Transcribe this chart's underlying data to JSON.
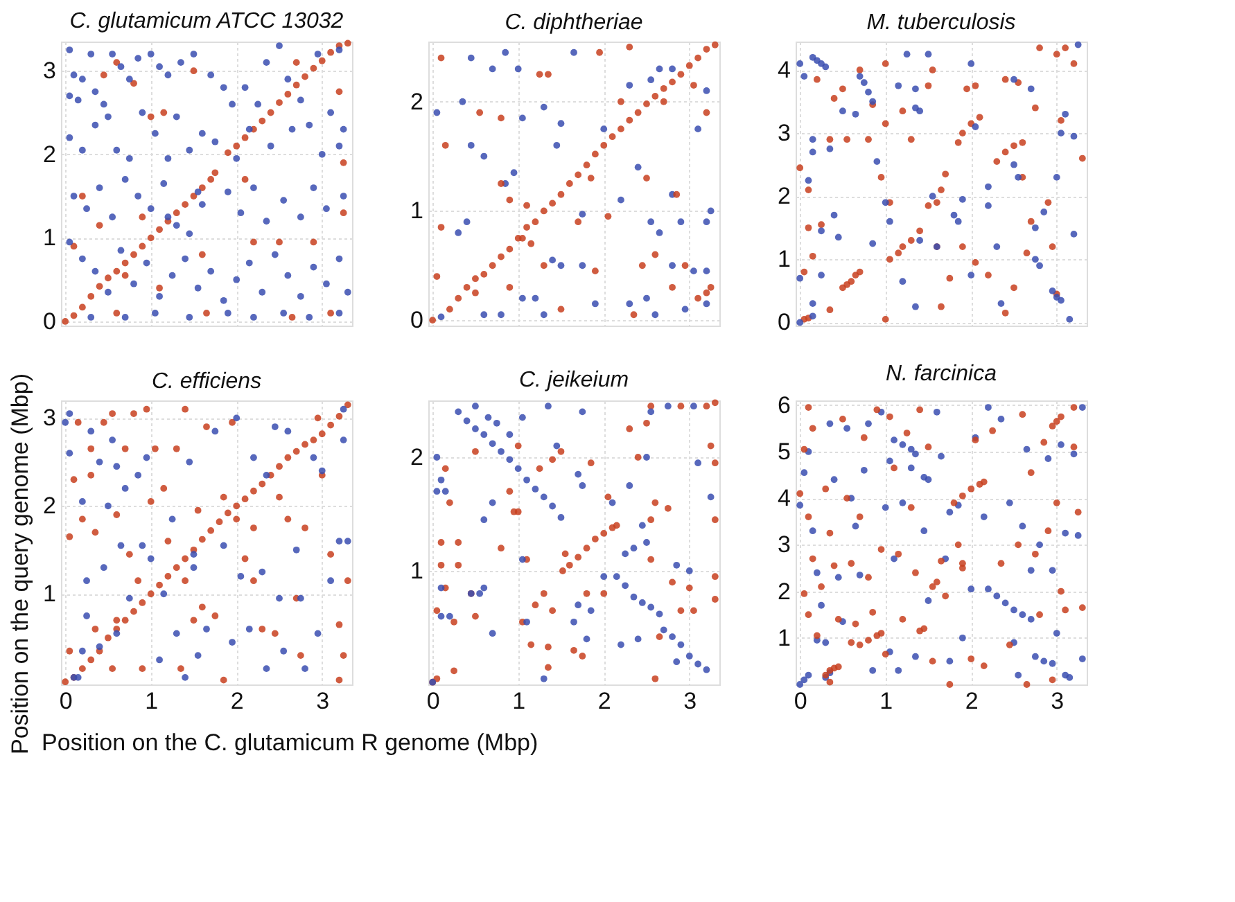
{
  "chart_data": [
    {
      "type": "scatter",
      "title": "C. glutamicum ATCC 13032",
      "xlabel": "Position on the C. glutamicum R genome (Mbp)",
      "ylabel": "Position on the query genome (Mbp)",
      "xlim": [
        -0.05,
        3.35
      ],
      "ylim": [
        -0.05,
        3.35
      ],
      "xticks": [
        0,
        1,
        2,
        3
      ],
      "yticks": [
        0,
        1,
        2,
        3
      ],
      "grid": true,
      "tick_labels": "y",
      "marker": "circle",
      "series": [
        {
          "color": "#c8401e",
          "x": [
            0,
            0.1,
            0.2,
            0.3,
            0.4,
            0.5,
            0.6,
            0.7,
            0.8,
            0.9,
            1.0,
            1.1,
            1.2,
            1.3,
            1.4,
            1.5,
            1.6,
            1.7,
            1.75,
            1.9,
            2.0,
            2.1,
            2.2,
            2.3,
            2.4,
            2.5,
            2.6,
            2.7,
            2.8,
            2.9,
            3.0,
            3.1,
            3.2,
            3.3,
            0.45,
            0.6,
            0.8,
            1.0,
            1.15,
            0.2,
            0.4,
            0.1,
            0.9,
            1.6,
            1.1,
            0.6,
            1.65,
            2.2,
            2.5,
            2.9,
            3.25,
            3.25,
            2.65,
            3.1,
            2.7,
            3.2,
            1.5,
            0.7,
            2.1
          ],
          "values": [
            0,
            0.07,
            0.17,
            0.3,
            0.42,
            0.52,
            0.6,
            0.7,
            0.8,
            0.9,
            1.0,
            1.1,
            1.2,
            1.3,
            1.4,
            1.5,
            1.6,
            1.7,
            1.78,
            2.02,
            2.1,
            2.2,
            2.3,
            2.4,
            2.5,
            2.62,
            2.72,
            2.83,
            2.93,
            3.03,
            3.12,
            3.22,
            3.3,
            3.33,
            2.95,
            3.1,
            2.85,
            2.45,
            2.5,
            1.5,
            1.15,
            0.9,
            1.25,
            0.8,
            0.4,
            0.1,
            0.1,
            0.95,
            0.95,
            0.95,
            1.3,
            1.9,
            0.05,
            0.1,
            3.1,
            2.75,
            3.0,
            0.55,
            1.7
          ]
        },
        {
          "color": "#3a4db0",
          "x": [
            0.05,
            0.1,
            0.05,
            0.15,
            0.2,
            0.3,
            0.35,
            0.45,
            0.55,
            0.65,
            0.75,
            0.85,
            1.0,
            1.1,
            1.2,
            1.35,
            1.5,
            1.7,
            1.85,
            1.95,
            2.1,
            2.25,
            2.35,
            2.5,
            2.6,
            2.75,
            2.95,
            3.1,
            3.25,
            0.05,
            0.2,
            0.35,
            0.5,
            0.6,
            0.75,
            0.9,
            1.05,
            1.2,
            1.3,
            1.45,
            1.6,
            1.75,
            2.0,
            2.15,
            2.4,
            2.65,
            2.85,
            3.0,
            3.2,
            0.1,
            0.25,
            0.4,
            0.55,
            0.7,
            0.85,
            1.0,
            1.15,
            1.3,
            1.45,
            1.6,
            1.9,
            2.05,
            2.2,
            2.35,
            2.55,
            2.75,
            2.9,
            3.05,
            3.25,
            0.05,
            0.2,
            0.35,
            0.5,
            0.65,
            0.8,
            0.95,
            1.1,
            1.25,
            1.4,
            1.55,
            1.7,
            1.85,
            2.0,
            2.15,
            2.3,
            2.45,
            2.6,
            2.75,
            2.9,
            3.05,
            3.2,
            3.3,
            0.3,
            0.7,
            1.05,
            1.45,
            1.9,
            2.2,
            2.55,
            2.85,
            3.2,
            1.2,
            1.55,
            3.2
          ],
          "values": [
            3.25,
            2.95,
            2.7,
            2.65,
            2.9,
            3.2,
            2.75,
            2.6,
            3.2,
            3.05,
            2.9,
            3.15,
            3.2,
            3.05,
            2.95,
            3.1,
            3.2,
            2.95,
            2.8,
            2.6,
            2.8,
            2.6,
            3.1,
            3.3,
            2.9,
            2.65,
            3.2,
            2.5,
            2.3,
            2.2,
            2.05,
            2.35,
            2.45,
            2.05,
            1.95,
            2.5,
            2.25,
            1.95,
            2.45,
            2.05,
            2.25,
            2.15,
            1.95,
            2.3,
            2.1,
            2.3,
            2.35,
            2.0,
            2.1,
            1.5,
            1.35,
            1.6,
            1.25,
            1.7,
            1.5,
            1.35,
            1.65,
            1.15,
            1.05,
            1.4,
            1.55,
            1.3,
            1.6,
            1.2,
            1.45,
            1.25,
            1.6,
            1.35,
            1.5,
            0.95,
            0.75,
            0.6,
            0.35,
            0.85,
            0.45,
            0.7,
            0.3,
            0.55,
            0.75,
            0.4,
            0.6,
            0.25,
            0.5,
            0.7,
            0.35,
            0.8,
            0.55,
            0.3,
            0.65,
            0.45,
            0.75,
            0.35,
            0.05,
            0.05,
            0.1,
            0.05,
            0.1,
            0.05,
            0.1,
            0.05,
            0.1,
            1.25,
            1.55,
            3.25
          ]
        }
      ]
    },
    {
      "type": "scatter",
      "title": "C. diphtheriae",
      "xlim": [
        -0.05,
        3.35
      ],
      "ylim": [
        -0.05,
        2.55
      ],
      "xticks": [
        0,
        1,
        2,
        3
      ],
      "yticks": [
        0,
        1,
        2
      ],
      "grid": true,
      "tick_labels": "y",
      "marker": "circle",
      "series": [
        {
          "color": "#3a4db0",
          "x": [
            0.05,
            0.35,
            0.45,
            0.45,
            0.6,
            0.7,
            0.85,
            1.0,
            1.05,
            0.95,
            0.85,
            1.3,
            1.5,
            1.45,
            1.65,
            2.0,
            2.3,
            2.55,
            2.65,
            2.8,
            3.1,
            3.2,
            2.8,
            3.25,
            3.2,
            2.55,
            2.65,
            2.9,
            2.8,
            3.05,
            3.2,
            2.5,
            2.6,
            2.95,
            3.2,
            2.3,
            1.9,
            1.75,
            1.5,
            1.4,
            1.05,
            1.2,
            1.3,
            0.6,
            0.8,
            0.1,
            0.3,
            0.4,
            1.75,
            2.2,
            2.4
          ],
          "values": [
            1.9,
            2.0,
            2.4,
            1.6,
            1.5,
            2.3,
            2.45,
            2.3,
            1.85,
            1.35,
            1.25,
            1.95,
            1.8,
            1.6,
            2.45,
            1.75,
            2.15,
            2.2,
            2.3,
            2.3,
            1.75,
            2.1,
            1.15,
            1.0,
            0.9,
            0.9,
            0.8,
            0.9,
            0.5,
            0.45,
            0.45,
            0.2,
            0.05,
            0.1,
            0.15,
            0.15,
            0.15,
            0.5,
            0.5,
            0.55,
            0.2,
            0.2,
            0.05,
            0.05,
            0.05,
            0.03,
            0.8,
            0.9,
            0.97,
            1.1,
            1.4
          ]
        },
        {
          "color": "#c8401e",
          "x": [
            0,
            0.2,
            0.3,
            0.4,
            0.5,
            0.6,
            0.7,
            0.8,
            0.9,
            1.0,
            1.1,
            1.2,
            1.3,
            1.4,
            1.5,
            1.6,
            1.7,
            1.8,
            1.9,
            2.0,
            2.1,
            2.2,
            2.3,
            2.4,
            2.5,
            2.6,
            2.7,
            2.8,
            2.9,
            3.0,
            3.1,
            3.2,
            3.3,
            0.1,
            0.15,
            0.1,
            0.05,
            0.55,
            0.8,
            0.8,
            0.9,
            1.1,
            1.25,
            1.35,
            1.15,
            1.5,
            1.7,
            1.85,
            1.95,
            2.05,
            2.2,
            2.3,
            2.5,
            2.6,
            2.7,
            2.85,
            2.95,
            3.05,
            3.2,
            3.25,
            3.2,
            2.45,
            2.35,
            1.9,
            1.3,
            0.9,
            0.5,
            1.05,
            2.8,
            3.1
          ],
          "values": [
            0,
            0.1,
            0.2,
            0.3,
            0.38,
            0.42,
            0.5,
            0.58,
            0.65,
            0.75,
            0.85,
            0.9,
            1.0,
            1.07,
            1.15,
            1.25,
            1.33,
            1.42,
            1.52,
            1.6,
            1.68,
            1.75,
            1.83,
            1.9,
            1.98,
            2.05,
            2.12,
            2.18,
            2.25,
            2.33,
            2.4,
            2.48,
            2.52,
            2.4,
            1.6,
            0.85,
            0.4,
            1.9,
            1.85,
            1.25,
            1.1,
            1.05,
            2.25,
            2.25,
            0.7,
            0.1,
            0.9,
            1.3,
            2.45,
            0.95,
            2.0,
            2.5,
            1.3,
            0.6,
            2.0,
            1.15,
            0.5,
            2.15,
            1.9,
            0.3,
            0.25,
            0.5,
            0.05,
            0.45,
            0.5,
            0.3,
            0.25,
            0.75,
            0.3,
            0.2
          ]
        }
      ]
    },
    {
      "type": "scatter",
      "title": "M. tuberculosis",
      "xlim": [
        -0.05,
        3.35
      ],
      "ylim": [
        -0.05,
        4.45
      ],
      "xticks": [
        0,
        1,
        2,
        3
      ],
      "yticks": [
        0,
        1,
        2,
        3,
        4
      ],
      "grid": true,
      "tick_labels": "y",
      "marker": "circle",
      "series": [
        {
          "color": "#c8401e",
          "x": [
            0.05,
            0.1,
            0.5,
            0.55,
            0.6,
            0.65,
            0.7,
            1.05,
            1.15,
            1.2,
            1.3,
            1.4,
            1.5,
            1.6,
            1.65,
            1.7,
            1.85,
            1.9,
            2.0,
            2.1,
            2.3,
            2.4,
            2.5,
            2.6,
            3.0,
            3.1,
            0.0,
            0.1,
            0.1,
            0.15,
            0.05,
            0.25,
            0.35,
            0.4,
            0.5,
            0.2,
            0.7,
            0.8,
            0.55,
            0.85,
            1.0,
            1.0,
            0.95,
            1.05,
            1.3,
            1.2,
            1.5,
            1.55,
            1.6,
            1.75,
            1.9,
            2.05,
            2.2,
            1.95,
            2.05,
            2.4,
            2.55,
            2.6,
            2.65,
            2.7,
            2.9,
            2.95,
            2.5,
            2.4,
            0.35,
            1.0,
            1.65,
            2.75,
            3.2,
            3.05,
            3.3,
            2.8,
            3.0
          ],
          "values": [
            0.05,
            0.07,
            0.55,
            0.6,
            0.65,
            0.75,
            0.8,
            1.0,
            1.1,
            1.2,
            1.3,
            1.45,
            1.85,
            1.9,
            2.1,
            2.35,
            2.85,
            3.0,
            3.15,
            3.25,
            2.55,
            2.7,
            2.8,
            2.85,
            4.25,
            4.35,
            2.45,
            2.1,
            1.5,
            1.05,
            0.8,
            1.55,
            2.9,
            3.55,
            3.7,
            3.85,
            4.0,
            2.9,
            2.9,
            3.45,
            4.1,
            3.15,
            2.3,
            1.9,
            2.9,
            3.35,
            3.75,
            4.0,
            1.2,
            0.7,
            1.2,
            0.95,
            0.75,
            3.7,
            3.75,
            3.85,
            3.8,
            2.3,
            1.1,
            1.6,
            1.9,
            1.2,
            0.55,
            0.15,
            0.2,
            0.05,
            0.25,
            3.4,
            4.1,
            3.2,
            2.6,
            4.35,
            0.45
          ]
        },
        {
          "color": "#3a4db0",
          "x": [
            0.15,
            0.2,
            0.25,
            0.3,
            0.7,
            0.75,
            0.8,
            0.85,
            1.35,
            1.4,
            1.35,
            1.8,
            1.85,
            2.5,
            2.55,
            2.75,
            2.8,
            2.95,
            3.0,
            3.05,
            0.0,
            0.05,
            0.15,
            0.15,
            0.1,
            0.0,
            0.15,
            0.15,
            0.0,
            0.25,
            0.25,
            0.4,
            0.45,
            0.5,
            0.65,
            0.35,
            0.85,
            0.9,
            1.0,
            1.05,
            1.15,
            1.2,
            1.25,
            1.35,
            1.4,
            1.5,
            1.55,
            1.6,
            1.9,
            2.0,
            2.0,
            2.05,
            2.2,
            2.3,
            2.35,
            2.5,
            2.7,
            2.75,
            2.85,
            3.0,
            3.05,
            3.1,
            3.2,
            3.2,
            3.15,
            3.25,
            2.2
          ],
          "values": [
            4.2,
            4.15,
            4.1,
            4.05,
            3.9,
            3.8,
            3.65,
            3.5,
            3.4,
            3.35,
            3.7,
            1.7,
            1.6,
            2.5,
            2.3,
            1.0,
            0.9,
            0.5,
            0.4,
            0.35,
            4.1,
            3.9,
            2.9,
            2.7,
            2.25,
            0.7,
            0.3,
            0.1,
            0.0,
            1.45,
            0.75,
            1.7,
            1.35,
            3.35,
            3.3,
            2.75,
            1.25,
            2.55,
            1.9,
            1.6,
            3.75,
            0.65,
            4.25,
            0.25,
            1.3,
            4.25,
            2.0,
            1.2,
            1.95,
            4.1,
            0.75,
            3.1,
            1.85,
            1.2,
            0.3,
            3.85,
            3.7,
            1.5,
            1.75,
            2.3,
            3.0,
            3.3,
            2.95,
            1.4,
            0.05,
            4.4,
            2.15
          ]
        }
      ]
    },
    {
      "type": "scatter",
      "title": "C. efficiens",
      "xlim": [
        -0.05,
        3.35
      ],
      "ylim": [
        -0.03,
        3.2
      ],
      "xticks": [
        0,
        1,
        2,
        3
      ],
      "yticks": [
        1,
        2,
        3
      ],
      "grid": true,
      "marker": "circle",
      "series": [
        {
          "color": "#c8401e",
          "x": [
            0,
            0.1,
            0.2,
            0.3,
            0.4,
            0.5,
            0.6,
            0.7,
            0.8,
            0.9,
            1.0,
            1.1,
            1.2,
            1.3,
            1.4,
            1.5,
            1.6,
            1.7,
            1.8,
            1.9,
            2.0,
            2.1,
            2.2,
            2.3,
            2.4,
            2.5,
            2.6,
            2.7,
            2.8,
            2.9,
            3.0,
            3.1,
            3.2,
            3.3,
            0.05,
            0.1,
            0.15,
            0.05,
            0.2,
            0.3,
            0.3,
            0.35,
            0.45,
            0.55,
            0.6,
            0.7,
            0.75,
            0.85,
            0.8,
            0.95,
            1.0,
            1.05,
            1.15,
            1.2,
            1.3,
            1.4,
            1.4,
            1.55,
            1.65,
            1.6,
            1.75,
            1.85,
            1.95,
            2.0,
            2.1,
            2.2,
            2.3,
            2.45,
            2.5,
            2.6,
            2.7,
            2.8,
            2.95,
            3.0,
            3.1,
            3.2,
            3.25,
            3.3,
            0.35,
            0.6,
            0.9,
            1.35,
            1.85,
            2.75,
            3.2,
            0.55,
            1.5,
            2.2
          ],
          "values": [
            0,
            0.05,
            0.15,
            0.25,
            0.35,
            0.5,
            0.6,
            0.7,
            0.8,
            0.9,
            1.0,
            1.1,
            1.2,
            1.3,
            1.4,
            1.5,
            1.62,
            1.72,
            1.82,
            1.92,
            2.0,
            2.08,
            2.17,
            2.25,
            2.35,
            2.45,
            2.55,
            2.62,
            2.7,
            2.75,
            2.82,
            2.92,
            3.02,
            3.15,
            0.35,
            2.3,
            2.95,
            1.65,
            1.85,
            2.35,
            2.65,
            1.7,
            2.95,
            3.05,
            1.9,
            2.65,
            1.45,
            1.15,
            3.05,
            3.1,
            2.05,
            2.65,
            2.2,
            1.6,
            2.65,
            3.1,
            1.15,
            1.95,
            2.9,
            0.85,
            0.75,
            2.1,
            2.95,
            1.85,
            1.4,
            1.15,
            0.6,
            0.55,
            2.1,
            1.85,
            0.95,
            1.75,
            3.0,
            2.35,
            1.45,
            0.65,
            0.3,
            1.15,
            0.6,
            0.7,
            0.15,
            0.15,
            0.02,
            0.3,
            0.02,
            0.15,
            0.7,
            1.75
          ]
        },
        {
          "color": "#3a4db0",
          "x": [
            0.0,
            0.05,
            0.05,
            0.2,
            0.25,
            0.25,
            0.3,
            0.4,
            0.45,
            0.5,
            0.55,
            0.6,
            0.65,
            0.7,
            0.75,
            0.85,
            0.9,
            0.95,
            1.0,
            1.1,
            1.15,
            1.25,
            1.3,
            1.4,
            1.45,
            1.5,
            1.55,
            1.65,
            1.75,
            1.85,
            1.95,
            2.0,
            2.05,
            2.15,
            2.2,
            2.3,
            2.35,
            2.45,
            2.5,
            2.55,
            2.6,
            2.7,
            2.75,
            2.8,
            2.9,
            2.95,
            3.0,
            3.1,
            3.2,
            3.25,
            3.3,
            0.1,
            0.15,
            0.2,
            0.4,
            0.6,
            1.5,
            2.35,
            3.25
          ],
          "values": [
            2.95,
            3.05,
            2.6,
            2.05,
            1.15,
            0.75,
            2.85,
            2.5,
            1.3,
            2.0,
            2.75,
            2.45,
            1.55,
            2.2,
            0.95,
            2.35,
            1.55,
            2.55,
            1.4,
            0.25,
            1.0,
            1.85,
            0.55,
            0.05,
            2.5,
            1.3,
            0.3,
            0.6,
            2.85,
            1.55,
            0.45,
            3.0,
            1.2,
            0.6,
            2.55,
            1.25,
            0.15,
            2.9,
            0.95,
            0.35,
            2.85,
            1.5,
            0.95,
            0.15,
            2.55,
            0.55,
            2.4,
            1.15,
            1.6,
            2.75,
            1.6,
            0.05,
            0.05,
            0.35,
            0.4,
            0.55,
            1.45,
            2.35,
            3.1
          ]
        }
      ]
    },
    {
      "type": "scatter",
      "title": "C. jeikeium",
      "xlim": [
        -0.05,
        3.35
      ],
      "ylim": [
        0,
        2.5
      ],
      "xticks": [
        0,
        1,
        2,
        3
      ],
      "yticks": [
        1,
        2
      ],
      "grid": true,
      "marker": "circle",
      "series": [
        {
          "color": "#c8401e",
          "x": [
            1.52,
            1.6,
            1.7,
            1.8,
            1.9,
            2.0,
            2.1,
            2.15,
            0.0,
            0.05,
            0.25,
            0.1,
            0.1,
            0.15,
            0.3,
            0.3,
            0.05,
            0.25,
            0.2,
            0.15,
            0.45,
            0.5,
            0.5,
            0.8,
            0.9,
            0.95,
            1.0,
            1.0,
            1.05,
            1.1,
            1.15,
            1.2,
            1.25,
            1.3,
            1.35,
            1.35,
            1.4,
            1.4,
            1.5,
            1.55,
            1.65,
            1.8,
            1.85,
            2.0,
            2.05,
            2.3,
            2.4,
            2.5,
            2.55,
            2.6,
            2.55,
            2.55,
            2.65,
            2.75,
            2.8,
            2.9,
            3.0,
            3.05,
            3.25,
            3.3,
            3.3,
            3.3,
            3.3,
            3.2,
            3.3,
            2.9,
            2.6,
            1.75
          ],
          "values": [
            1.0,
            1.05,
            1.12,
            1.2,
            1.28,
            1.33,
            1.38,
            1.4,
            0.02,
            0.05,
            0.12,
            1.25,
            1.05,
            0.85,
            1.25,
            1.05,
            0.65,
            0.55,
            1.6,
            1.9,
            0.8,
            2.05,
            0.6,
            1.2,
            1.7,
            1.52,
            1.52,
            2.1,
            0.55,
            1.1,
            0.35,
            0.7,
            1.9,
            0.8,
            0.33,
            0.15,
            0.65,
            1.98,
            2.05,
            1.15,
            0.3,
            0.8,
            1.95,
            0.8,
            1.65,
            2.25,
            2.0,
            2.3,
            2.45,
            1.6,
            1.45,
            1.1,
            0.42,
            1.55,
            0.9,
            0.65,
            0.85,
            0.65,
            2.1,
            1.95,
            1.45,
            0.95,
            0.75,
            2.45,
            2.48,
            2.45,
            0.05,
            0.25
          ]
        },
        {
          "color": "#3a4db0",
          "x": [
            0.3,
            0.4,
            0.5,
            0.6,
            0.7,
            0.8,
            0.9,
            1.0,
            1.1,
            1.2,
            1.3,
            1.4,
            1.5,
            2.15,
            2.25,
            2.35,
            2.45,
            2.55,
            2.65,
            2.7,
            2.8,
            2.9,
            3.0,
            3.1,
            3.2,
            0.05,
            0.05,
            0.1,
            0.15,
            0.1,
            0.1,
            0.2,
            0.45,
            0.55,
            0.6,
            0.6,
            0.7,
            0.7,
            0.5,
            0.65,
            0.75,
            0.9,
            1.05,
            1.05,
            1.1,
            1.35,
            1.45,
            1.3,
            1.65,
            1.7,
            1.7,
            1.75,
            1.75,
            1.8,
            1.85,
            2.0,
            2.1,
            2.2,
            2.25,
            2.3,
            2.35,
            2.45,
            2.5,
            2.5,
            2.55,
            2.75,
            2.85,
            2.85,
            3.0,
            3.05,
            3.1,
            3.25,
            2.4,
            0.0
          ],
          "values": [
            2.4,
            2.32,
            2.25,
            2.2,
            2.12,
            2.05,
            1.98,
            1.9,
            1.8,
            1.72,
            1.65,
            1.57,
            1.47,
            0.95,
            0.87,
            0.77,
            0.72,
            0.68,
            0.62,
            0.48,
            0.42,
            0.35,
            0.25,
            0.18,
            0.13,
            1.7,
            2.0,
            1.8,
            1.7,
            0.85,
            0.6,
            0.6,
            0.8,
            0.8,
            0.85,
            1.45,
            0.45,
            1.6,
            2.45,
            2.35,
            2.3,
            2.2,
            2.35,
            1.1,
            0.55,
            2.45,
            2.1,
            0.05,
            0.55,
            0.7,
            1.85,
            1.75,
            2.4,
            0.4,
            0.65,
            0.95,
            1.6,
            0.35,
            1.15,
            1.75,
            1.2,
            1.4,
            1.25,
            2.0,
            2.4,
            2.45,
            1.05,
            0.2,
            1.0,
            2.45,
            1.95,
            1.65,
            0.4,
            0.02
          ]
        }
      ]
    },
    {
      "type": "scatter",
      "title": "N. farcinica",
      "xlim": [
        -0.05,
        3.35
      ],
      "ylim": [
        0,
        6.1
      ],
      "xticks": [
        0,
        1,
        2,
        3
      ],
      "yticks": [
        1,
        2,
        3,
        4,
        5,
        6
      ],
      "grid": true,
      "marker": "circle",
      "series": [
        {
          "color": "#3a4db0",
          "x": [
            0.0,
            0.05,
            0.1,
            0.3,
            0.35,
            1.1,
            1.2,
            1.3,
            1.35,
            1.45,
            1.5,
            1.75,
            1.85,
            2.2,
            2.3,
            2.4,
            2.5,
            2.6,
            2.7,
            2.75,
            2.85,
            2.95,
            3.1,
            3.15,
            0.0,
            0.05,
            0.1,
            0.15,
            0.2,
            0.25,
            0.3,
            0.35,
            0.4,
            0.45,
            0.5,
            0.55,
            0.6,
            0.65,
            0.7,
            0.75,
            0.8,
            0.85,
            0.95,
            1.0,
            1.05,
            1.1,
            1.15,
            1.2,
            1.3,
            1.35,
            1.45,
            1.5,
            1.6,
            1.65,
            1.7,
            1.75,
            1.9,
            2.0,
            2.05,
            2.15,
            2.2,
            2.35,
            2.45,
            2.5,
            2.55,
            2.6,
            2.7,
            2.8,
            2.9,
            2.95,
            3.0,
            3.05,
            3.1,
            3.2,
            3.25,
            3.3,
            3.3,
            0.2,
            1.05,
            2.65
          ],
          "values": [
            0.0,
            0.1,
            0.2,
            0.15,
            0.25,
            5.25,
            5.15,
            5.05,
            4.95,
            4.45,
            4.4,
            3.7,
            3.85,
            2.05,
            1.9,
            1.75,
            1.6,
            1.5,
            1.4,
            0.6,
            0.5,
            0.45,
            0.2,
            0.15,
            3.85,
            4.55,
            5.0,
            3.3,
            2.4,
            1.7,
            0.9,
            5.6,
            4.4,
            2.3,
            1.35,
            5.5,
            4.0,
            3.4,
            2.35,
            4.6,
            5.6,
            0.3,
            5.85,
            3.8,
            4.8,
            2.7,
            0.3,
            3.9,
            4.65,
            0.6,
            3.3,
            1.8,
            5.85,
            4.9,
            2.7,
            0.5,
            1.0,
            2.05,
            5.3,
            3.6,
            5.95,
            5.7,
            3.9,
            0.9,
            0.2,
            3.4,
            2.45,
            3.0,
            4.85,
            2.45,
            1.1,
            5.15,
            3.25,
            4.95,
            3.2,
            0.55,
            5.95,
            0.95,
            0.7,
            5.05
          ]
        },
        {
          "color": "#c8401e",
          "x": [
            0.3,
            0.35,
            0.4,
            0.45,
            0.7,
            0.8,
            0.9,
            0.95,
            1.4,
            1.45,
            1.55,
            1.6,
            1.8,
            1.9,
            2.0,
            2.1,
            2.15,
            2.95,
            3.0,
            3.05,
            3.2,
            0.1,
            0.15,
            0.05,
            0.0,
            0.1,
            0.15,
            0.05,
            0.1,
            0.2,
            0.25,
            0.3,
            0.35,
            0.4,
            0.45,
            0.5,
            0.55,
            0.6,
            0.65,
            0.7,
            0.75,
            0.8,
            0.85,
            0.9,
            0.95,
            1.0,
            1.05,
            1.1,
            1.15,
            1.2,
            1.25,
            1.3,
            1.35,
            1.4,
            1.5,
            1.55,
            1.65,
            1.7,
            1.75,
            1.85,
            1.9,
            2.0,
            2.05,
            2.15,
            2.25,
            2.35,
            2.45,
            2.55,
            2.6,
            2.65,
            2.7,
            2.75,
            2.8,
            2.85,
            2.9,
            2.95,
            3.0,
            3.05,
            3.1,
            3.2,
            3.25,
            3.3,
            0.35,
            0.6,
            1.9
          ],
          "values": [
            0.2,
            0.3,
            0.35,
            0.38,
            0.85,
            0.95,
            1.05,
            1.1,
            1.15,
            1.2,
            2.1,
            2.2,
            3.9,
            4.05,
            4.2,
            4.3,
            4.35,
            5.55,
            5.65,
            5.75,
            5.95,
            5.95,
            5.5,
            5.05,
            4.1,
            3.6,
            2.7,
            1.95,
            1.5,
            1.05,
            2.1,
            4.2,
            3.25,
            2.55,
            1.4,
            5.7,
            4.0,
            2.6,
            1.3,
            3.6,
            5.3,
            2.3,
            1.55,
            5.9,
            2.9,
            0.65,
            5.75,
            4.65,
            2.8,
            1.4,
            5.4,
            3.8,
            2.4,
            5.9,
            5.1,
            0.5,
            2.65,
            1.9,
            0.0,
            3.0,
            2.5,
            0.55,
            5.25,
            0.4,
            5.45,
            2.6,
            0.85,
            3.0,
            5.8,
            0.0,
            4.55,
            2.8,
            1.5,
            5.2,
            3.3,
            0.1,
            3.9,
            2.0,
            1.6,
            5.1,
            3.7,
            1.65,
            0.05,
            0.9,
            2.6
          ]
        }
      ]
    }
  ]
}
